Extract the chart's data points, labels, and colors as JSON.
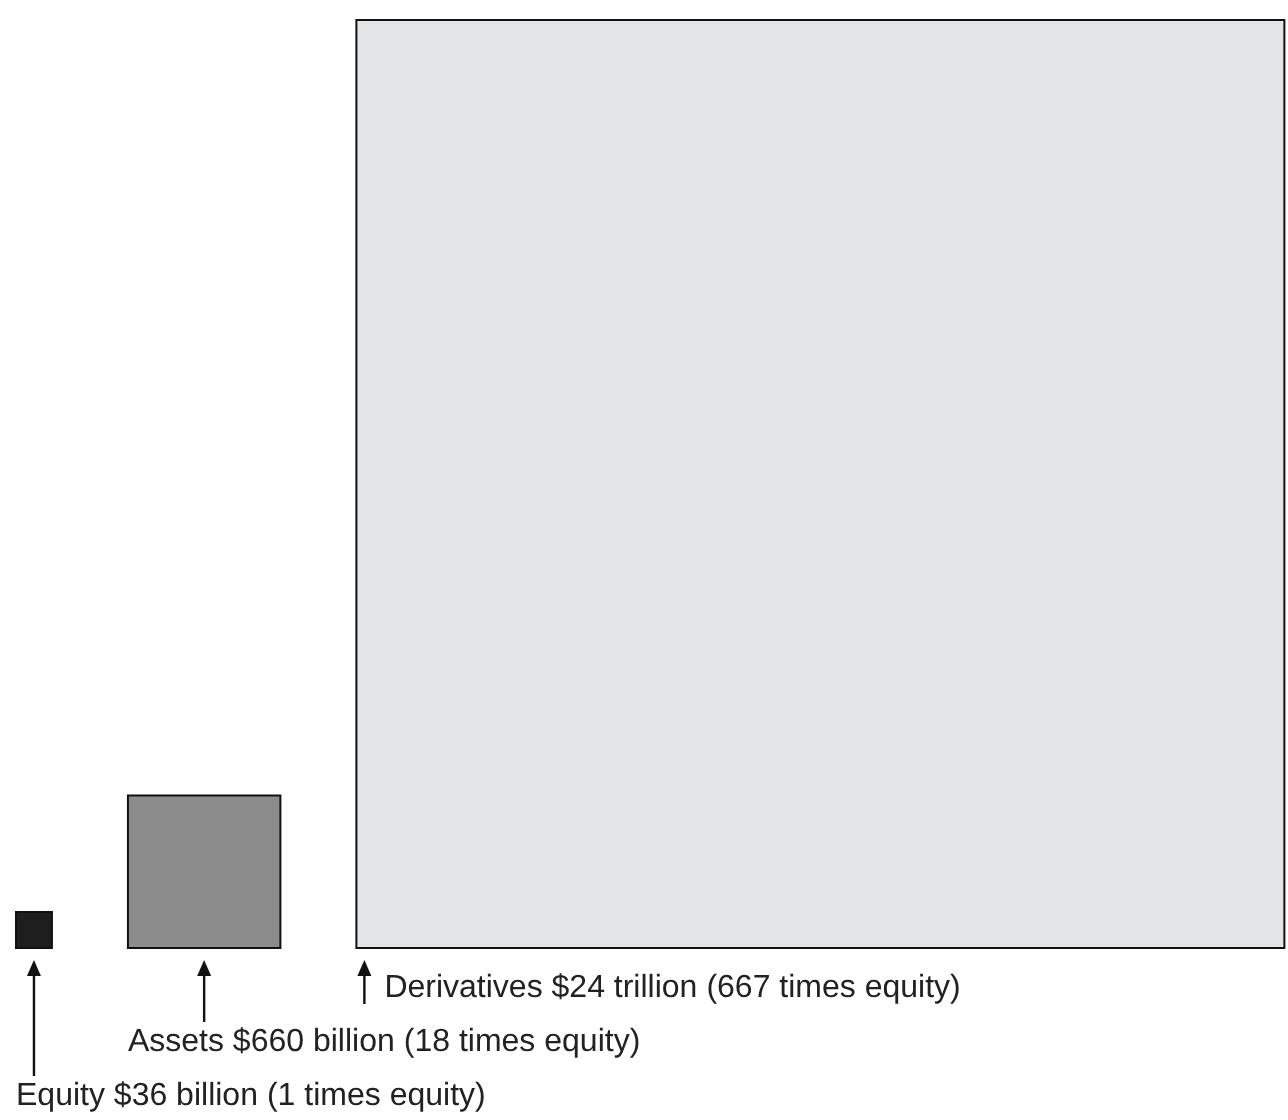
{
  "chart_data": {
    "type": "other",
    "categories": [
      "Equity $36 billion",
      "Assets $660 billion",
      "Derivatives $24 trillion"
    ],
    "values": [
      1,
      18,
      667
    ],
    "value_labels": [
      "(1 times equity)",
      "(18 times equity)",
      "(667 times equity)"
    ],
    "colors": [
      "#1e1e1e",
      "#8c8c8c",
      "#e3e4e6"
    ]
  }
}
